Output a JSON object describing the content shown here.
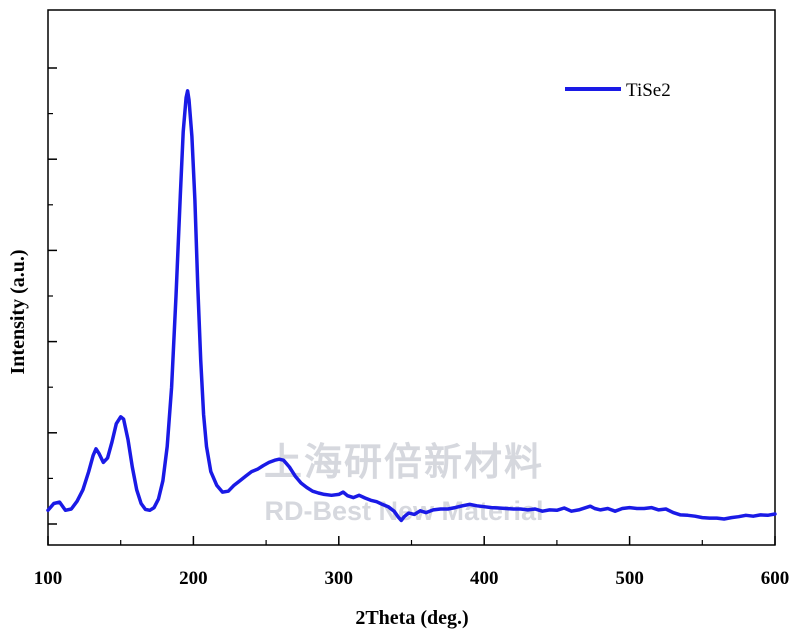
{
  "watermark": {
    "cn": "上海研倍新材料",
    "en": "RD-Best New Material"
  },
  "chart_data": {
    "type": "line",
    "xlabel": "2Theta (deg.)",
    "ylabel": "Intensity (a.u.)",
    "xlim": [
      100,
      600
    ],
    "ylim": [
      0,
      100
    ],
    "x_ticks": [
      100,
      200,
      300,
      400,
      500,
      600
    ],
    "y_ticks_labeled": false,
    "grid": false,
    "legend_position": "top-right",
    "color": "#1a1ae6",
    "series": [
      {
        "name": "TiSe2",
        "points": [
          [
            100,
            3.0
          ],
          [
            104,
            4.5
          ],
          [
            108,
            4.8
          ],
          [
            112,
            3.0
          ],
          [
            116,
            3.3
          ],
          [
            120,
            5.0
          ],
          [
            124,
            7.5
          ],
          [
            128,
            11.5
          ],
          [
            131,
            15.0
          ],
          [
            133,
            16.5
          ],
          [
            135,
            15.5
          ],
          [
            138,
            13.5
          ],
          [
            141,
            14.5
          ],
          [
            144,
            18.0
          ],
          [
            147,
            22.0
          ],
          [
            150,
            23.5
          ],
          [
            152,
            23.0
          ],
          [
            155,
            18.5
          ],
          [
            158,
            12.5
          ],
          [
            161,
            7.5
          ],
          [
            164,
            4.5
          ],
          [
            167,
            3.2
          ],
          [
            170,
            3.0
          ],
          [
            173,
            3.6
          ],
          [
            176,
            5.5
          ],
          [
            179,
            9.5
          ],
          [
            182,
            17.0
          ],
          [
            185,
            30.0
          ],
          [
            188,
            50.0
          ],
          [
            191,
            72.0
          ],
          [
            193,
            86.0
          ],
          [
            195,
            93.5
          ],
          [
            196,
            95.0
          ],
          [
            197,
            93.0
          ],
          [
            199,
            85.0
          ],
          [
            201,
            71.0
          ],
          [
            203,
            52.0
          ],
          [
            205,
            36.0
          ],
          [
            207,
            24.0
          ],
          [
            209,
            17.0
          ],
          [
            212,
            11.5
          ],
          [
            216,
            8.5
          ],
          [
            220,
            7.0
          ],
          [
            224,
            7.2
          ],
          [
            228,
            8.5
          ],
          [
            232,
            9.5
          ],
          [
            236,
            10.5
          ],
          [
            240,
            11.5
          ],
          [
            244,
            12.0
          ],
          [
            248,
            12.8
          ],
          [
            252,
            13.5
          ],
          [
            256,
            14.0
          ],
          [
            259,
            14.2
          ],
          [
            262,
            14.0
          ],
          [
            266,
            12.5
          ],
          [
            270,
            10.5
          ],
          [
            274,
            9.0
          ],
          [
            278,
            8.0
          ],
          [
            282,
            7.2
          ],
          [
            286,
            6.8
          ],
          [
            290,
            6.5
          ],
          [
            295,
            6.3
          ],
          [
            300,
            6.5
          ],
          [
            303,
            7.0
          ],
          [
            306,
            6.2
          ],
          [
            310,
            5.8
          ],
          [
            314,
            6.3
          ],
          [
            318,
            5.7
          ],
          [
            322,
            5.2
          ],
          [
            326,
            4.9
          ],
          [
            330,
            4.3
          ],
          [
            334,
            3.8
          ],
          [
            338,
            2.8
          ],
          [
            341,
            1.5
          ],
          [
            343,
            0.8
          ],
          [
            345,
            1.6
          ],
          [
            348,
            2.4
          ],
          [
            352,
            2.1
          ],
          [
            356,
            2.9
          ],
          [
            360,
            2.5
          ],
          [
            365,
            3.1
          ],
          [
            370,
            3.3
          ],
          [
            375,
            3.3
          ],
          [
            380,
            3.6
          ],
          [
            385,
            4.0
          ],
          [
            390,
            4.3
          ],
          [
            395,
            4.0
          ],
          [
            400,
            3.8
          ],
          [
            405,
            3.6
          ],
          [
            410,
            3.5
          ],
          [
            415,
            3.4
          ],
          [
            420,
            3.3
          ],
          [
            425,
            3.3
          ],
          [
            430,
            3.1
          ],
          [
            435,
            3.3
          ],
          [
            440,
            2.8
          ],
          [
            445,
            3.1
          ],
          [
            450,
            3.0
          ],
          [
            455,
            3.5
          ],
          [
            460,
            2.8
          ],
          [
            465,
            3.1
          ],
          [
            470,
            3.6
          ],
          [
            473,
            3.9
          ],
          [
            476,
            3.4
          ],
          [
            480,
            3.1
          ],
          [
            485,
            3.4
          ],
          [
            490,
            2.8
          ],
          [
            495,
            3.4
          ],
          [
            500,
            3.6
          ],
          [
            505,
            3.4
          ],
          [
            510,
            3.4
          ],
          [
            515,
            3.6
          ],
          [
            520,
            3.1
          ],
          [
            525,
            3.3
          ],
          [
            530,
            2.5
          ],
          [
            535,
            2.0
          ],
          [
            540,
            1.9
          ],
          [
            545,
            1.7
          ],
          [
            550,
            1.4
          ],
          [
            555,
            1.3
          ],
          [
            560,
            1.3
          ],
          [
            565,
            1.1
          ],
          [
            570,
            1.4
          ],
          [
            575,
            1.6
          ],
          [
            580,
            1.9
          ],
          [
            585,
            1.7
          ],
          [
            590,
            2.0
          ],
          [
            595,
            1.9
          ],
          [
            600,
            2.2
          ]
        ]
      }
    ]
  }
}
